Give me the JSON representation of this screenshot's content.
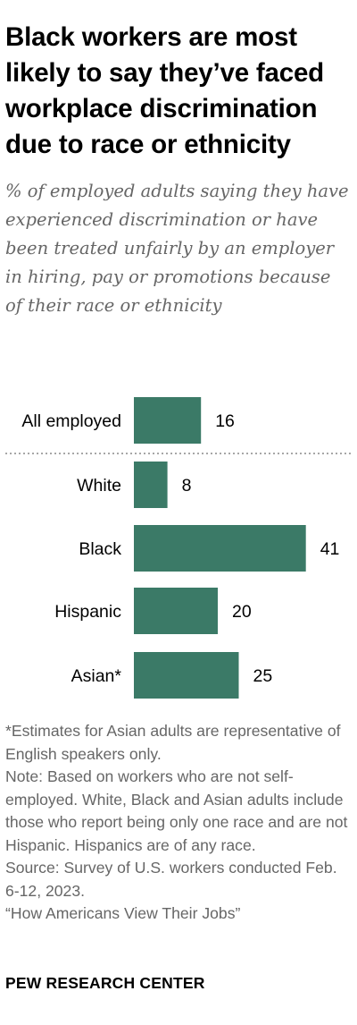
{
  "title": "Black workers are most likely to say they’ve faced workplace discrimination due to race or ethnicity",
  "subtitle": "% of employed adults saying they have experienced discrimination or have been treated unfairly by an employer in hiring, pay or promotions because of their race or ethnicity",
  "chart_data": {
    "type": "bar",
    "orientation": "horizontal",
    "categories": [
      "All employed",
      "White",
      "Black",
      "Hispanic",
      "Asian*"
    ],
    "values": [
      16,
      8,
      41,
      20,
      25
    ],
    "bar_color": "#3b7a67",
    "separator_after": "All employed",
    "grid": false
  },
  "notes": {
    "asterisk": "*Estimates for Asian adults are representative of English speakers only.",
    "note": "Note: Based on workers who are not self-employed. White, Black and Asian adults include those who report being only one race and are not Hispanic. Hispanics are of any race.",
    "source": "Source: Survey of U.S. workers conducted Feb. 6-12, 2023.",
    "report": "“How Americans View Their Jobs”"
  },
  "brand": "PEW RESEARCH CENTER"
}
